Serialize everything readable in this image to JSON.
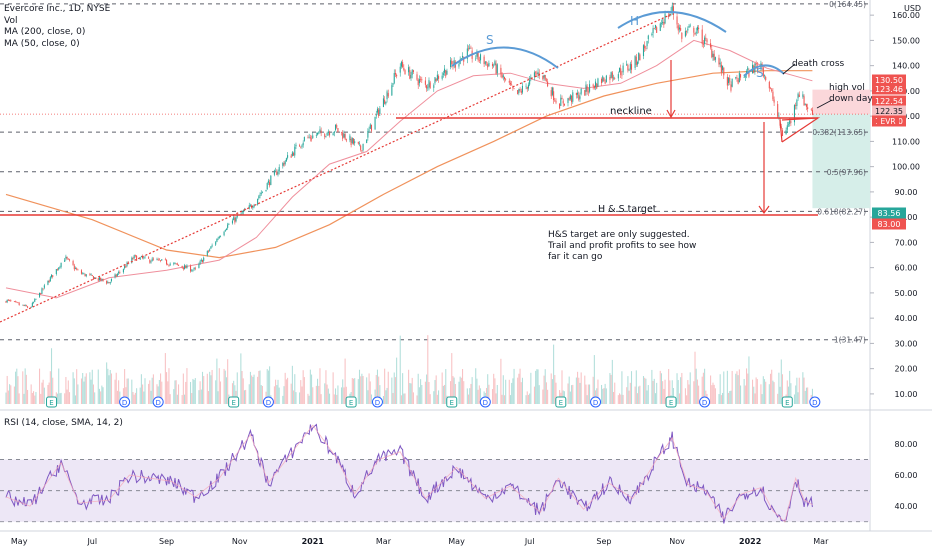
{
  "legend": {
    "title": "Evercore Inc., 1D, NYSE",
    "vol": "Vol",
    "ma200": "MA (200, close, 0)",
    "ma50": "MA (50, close, 0)",
    "rsi": "RSI (14, close, SMA, 14, 2)",
    "currency": "USD"
  },
  "colors": {
    "up": "#26a69a",
    "down": "#ef5350",
    "ma200": "#f0925c",
    "ma50": "#ef8f9c",
    "rsi": "#7e57c2",
    "rsi_band": "#ede7f6",
    "annot_red": "#e53935",
    "arc_blue": "#5b9bd5",
    "target_zone": "#d6eee9",
    "stop_zone": "#fbd7da"
  },
  "annotations": {
    "s_left": "S",
    "h_head": "H",
    "s_right": "S",
    "death_cross": "death cross",
    "high_vol_1": "high vol",
    "high_vol_2": "down day",
    "neckline": "neckline",
    "hs_target": "H & S target",
    "note_1": "H&S target are only suggested.",
    "note_2": "Trail and profit profits to see how",
    "note_3": "far it can go"
  },
  "chart_data": [
    {
      "type": "candlestick",
      "title": "Evercore Inc., 1D, NYSE",
      "x_ticks": [
        "May",
        "Jul",
        "Sep",
        "Nov",
        "2021",
        "Mar",
        "May",
        "Jul",
        "Sep",
        "Nov",
        "2022",
        "Mar"
      ],
      "y_ticks": [
        10,
        20,
        30,
        40,
        50,
        60,
        70,
        80,
        90,
        100,
        110,
        120,
        130,
        140,
        150,
        160
      ],
      "ylim": [
        6,
        166
      ],
      "close_path": [
        {
          "x": "2020-04-20",
          "y": 47
        },
        {
          "x": "2020-05-10",
          "y": 44
        },
        {
          "x": "2020-06-08",
          "y": 64
        },
        {
          "x": "2020-06-20",
          "y": 58
        },
        {
          "x": "2020-07-15",
          "y": 54
        },
        {
          "x": "2020-08-05",
          "y": 64
        },
        {
          "x": "2020-09-01",
          "y": 62
        },
        {
          "x": "2020-09-25",
          "y": 59
        },
        {
          "x": "2020-10-20",
          "y": 76
        },
        {
          "x": "2020-11-10",
          "y": 84
        },
        {
          "x": "2020-12-05",
          "y": 100
        },
        {
          "x": "2020-12-25",
          "y": 111
        },
        {
          "x": "2021-01-20",
          "y": 115
        },
        {
          "x": "2021-02-10",
          "y": 107
        },
        {
          "x": "2021-02-25",
          "y": 122
        },
        {
          "x": "2021-03-15",
          "y": 140
        },
        {
          "x": "2021-04-05",
          "y": 132
        },
        {
          "x": "2021-05-10",
          "y": 145
        },
        {
          "x": "2021-06-01",
          "y": 140
        },
        {
          "x": "2021-06-20",
          "y": 128
        },
        {
          "x": "2021-07-10",
          "y": 138
        },
        {
          "x": "2021-07-25",
          "y": 125
        },
        {
          "x": "2021-08-10",
          "y": 128
        },
        {
          "x": "2021-09-01",
          "y": 135
        },
        {
          "x": "2021-09-25",
          "y": 140
        },
        {
          "x": "2021-10-20",
          "y": 158
        },
        {
          "x": "2021-10-28",
          "y": 162
        },
        {
          "x": "2021-11-05",
          "y": 152
        },
        {
          "x": "2021-11-15",
          "y": 155
        },
        {
          "x": "2021-12-01",
          "y": 145
        },
        {
          "x": "2021-12-15",
          "y": 132
        },
        {
          "x": "2022-01-01",
          "y": 138
        },
        {
          "x": "2022-01-10",
          "y": 141
        },
        {
          "x": "2022-01-20",
          "y": 127
        },
        {
          "x": "2022-01-28",
          "y": 113
        },
        {
          "x": "2022-02-05",
          "y": 119
        },
        {
          "x": "2022-02-10",
          "y": 130
        },
        {
          "x": "2022-02-16",
          "y": 125
        },
        {
          "x": "2022-02-22",
          "y": 120.8
        }
      ],
      "ma200_path": [
        {
          "x": "2020-04-20",
          "y": 89
        },
        {
          "x": "2020-07-01",
          "y": 79
        },
        {
          "x": "2020-09-01",
          "y": 67
        },
        {
          "x": "2020-10-15",
          "y": 64
        },
        {
          "x": "2020-12-01",
          "y": 68
        },
        {
          "x": "2021-01-15",
          "y": 77
        },
        {
          "x": "2021-03-01",
          "y": 89
        },
        {
          "x": "2021-04-15",
          "y": 100
        },
        {
          "x": "2021-06-01",
          "y": 110
        },
        {
          "x": "2021-07-15",
          "y": 120
        },
        {
          "x": "2021-09-01",
          "y": 128
        },
        {
          "x": "2021-10-15",
          "y": 133
        },
        {
          "x": "2021-12-01",
          "y": 137
        },
        {
          "x": "2022-01-15",
          "y": 138
        },
        {
          "x": "2022-02-22",
          "y": 138
        }
      ],
      "ma50_path": [
        {
          "x": "2020-04-20",
          "y": 52
        },
        {
          "x": "2020-06-01",
          "y": 48
        },
        {
          "x": "2020-07-15",
          "y": 56
        },
        {
          "x": "2020-09-01",
          "y": 59
        },
        {
          "x": "2020-10-15",
          "y": 63
        },
        {
          "x": "2020-11-15",
          "y": 72
        },
        {
          "x": "2020-12-15",
          "y": 88
        },
        {
          "x": "2021-01-15",
          "y": 101
        },
        {
          "x": "2021-02-15",
          "y": 106
        },
        {
          "x": "2021-03-15",
          "y": 118
        },
        {
          "x": "2021-04-15",
          "y": 130
        },
        {
          "x": "2021-05-15",
          "y": 136
        },
        {
          "x": "2021-06-15",
          "y": 137
        },
        {
          "x": "2021-07-15",
          "y": 133
        },
        {
          "x": "2021-08-15",
          "y": 131
        },
        {
          "x": "2021-09-15",
          "y": 133
        },
        {
          "x": "2021-10-15",
          "y": 140
        },
        {
          "x": "2021-11-15",
          "y": 150
        },
        {
          "x": "2021-12-15",
          "y": 146
        },
        {
          "x": "2022-01-15",
          "y": 139
        },
        {
          "x": "2022-02-22",
          "y": 134
        }
      ],
      "last_price": 120.8,
      "ticker": "EVR",
      "price_labels": [
        {
          "value": "130.50",
          "color": "#ef5350"
        },
        {
          "value": "123.46",
          "color": "#ef5350"
        },
        {
          "value": "122.54",
          "color": "#ef5350"
        },
        {
          "value": "122.35",
          "color": "#f5c2c5"
        },
        {
          "value": "120.80",
          "color": "#ef5350"
        },
        {
          "value": "83.56",
          "color": "#26a69a"
        },
        {
          "value": "83.00",
          "color": "#ef5350"
        }
      ],
      "fib_levels": [
        {
          "label": "0(164.45)",
          "value": 164.45
        },
        {
          "label": "0.382(113.65)",
          "value": 113.65
        },
        {
          "label": "0.5(97.96)",
          "value": 97.96
        },
        {
          "label": "0.618(82.27)",
          "value": 82.27
        },
        {
          "label": "1(31.47)",
          "value": 31.47
        }
      ],
      "neckline_value": 121,
      "hs_target_value": 83,
      "position": {
        "entry": 120.8,
        "target": 83.56,
        "stop": 130.5
      }
    },
    {
      "type": "bar",
      "title": "Vol",
      "events": [
        "E",
        "D",
        "D",
        "E",
        "D",
        "E",
        "D",
        "E",
        "D",
        "E",
        "D",
        "E",
        "D",
        "E",
        "D"
      ]
    },
    {
      "type": "line",
      "title": "RSI (14, close, SMA, 14, 2)",
      "y_ticks": [
        40,
        60,
        80
      ],
      "ylim": [
        26,
        98
      ],
      "bands": [
        30,
        70
      ],
      "mid": 50,
      "rsi_path": [
        {
          "x": "2020-04-20",
          "y": 46
        },
        {
          "x": "2020-05-10",
          "y": 40
        },
        {
          "x": "2020-06-05",
          "y": 68
        },
        {
          "x": "2020-06-20",
          "y": 42
        },
        {
          "x": "2020-07-15",
          "y": 44
        },
        {
          "x": "2020-08-01",
          "y": 60
        },
        {
          "x": "2020-09-05",
          "y": 56
        },
        {
          "x": "2020-09-25",
          "y": 46
        },
        {
          "x": "2020-10-15",
          "y": 58
        },
        {
          "x": "2020-11-10",
          "y": 86
        },
        {
          "x": "2020-11-25",
          "y": 55
        },
        {
          "x": "2020-12-10",
          "y": 70
        },
        {
          "x": "2021-01-01",
          "y": 92
        },
        {
          "x": "2021-01-20",
          "y": 72
        },
        {
          "x": "2021-02-05",
          "y": 48
        },
        {
          "x": "2021-02-25",
          "y": 70
        },
        {
          "x": "2021-03-15",
          "y": 75
        },
        {
          "x": "2021-04-05",
          "y": 45
        },
        {
          "x": "2021-05-01",
          "y": 65
        },
        {
          "x": "2021-05-25",
          "y": 45
        },
        {
          "x": "2021-06-15",
          "y": 53
        },
        {
          "x": "2021-07-10",
          "y": 36
        },
        {
          "x": "2021-07-25",
          "y": 58
        },
        {
          "x": "2021-08-15",
          "y": 38
        },
        {
          "x": "2021-09-05",
          "y": 55
        },
        {
          "x": "2021-09-25",
          "y": 45
        },
        {
          "x": "2021-10-15",
          "y": 70
        },
        {
          "x": "2021-10-28",
          "y": 84
        },
        {
          "x": "2021-11-10",
          "y": 54
        },
        {
          "x": "2021-11-25",
          "y": 50
        },
        {
          "x": "2021-12-10",
          "y": 32
        },
        {
          "x": "2021-12-25",
          "y": 48
        },
        {
          "x": "2022-01-10",
          "y": 52
        },
        {
          "x": "2022-01-20",
          "y": 37
        },
        {
          "x": "2022-01-30",
          "y": 30
        },
        {
          "x": "2022-02-08",
          "y": 58
        },
        {
          "x": "2022-02-15",
          "y": 44
        },
        {
          "x": "2022-02-22",
          "y": 41
        }
      ]
    }
  ]
}
